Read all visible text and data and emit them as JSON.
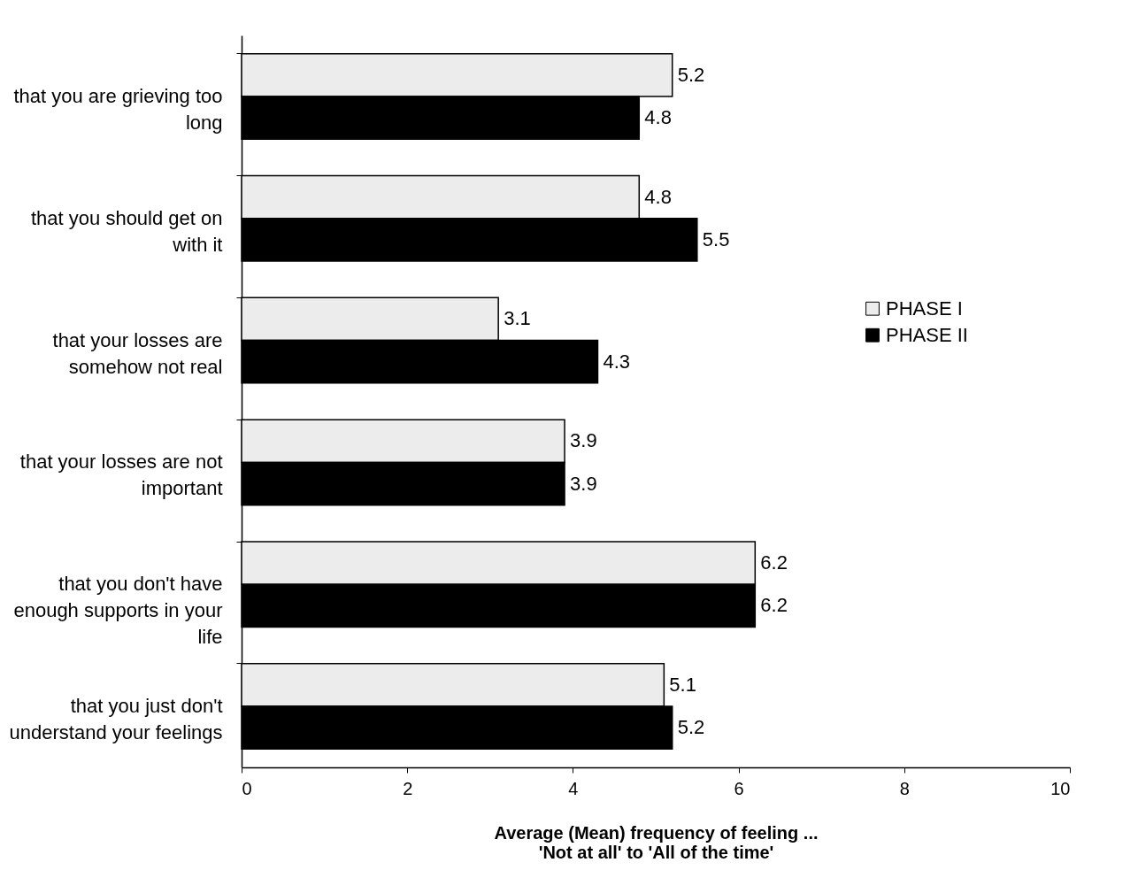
{
  "chart_data": {
    "type": "bar",
    "orientation": "horizontal",
    "xlabel": "Average (Mean) frequency of feeling ...\n'Not at all' to 'All of the time'",
    "categories": [
      "that you are grieving too long",
      "that you should get on with it",
      "that your losses are somehow not real",
      "that your losses are not important",
      "that you don't have enough supports in your life",
      "that you just don't understand your feelings"
    ],
    "series": [
      {
        "name": "PHASE I",
        "color": "#ececec",
        "values": [
          5.2,
          4.8,
          3.1,
          3.9,
          6.2,
          5.1
        ]
      },
      {
        "name": "PHASE II",
        "color": "#000000",
        "values": [
          4.8,
          5.5,
          4.3,
          3.9,
          6.2,
          5.2
        ]
      }
    ],
    "xlim": [
      0,
      10
    ],
    "xticks": [
      0,
      2,
      4,
      6,
      8,
      10
    ],
    "grid": false,
    "legend": "right",
    "data_labels": true
  }
}
